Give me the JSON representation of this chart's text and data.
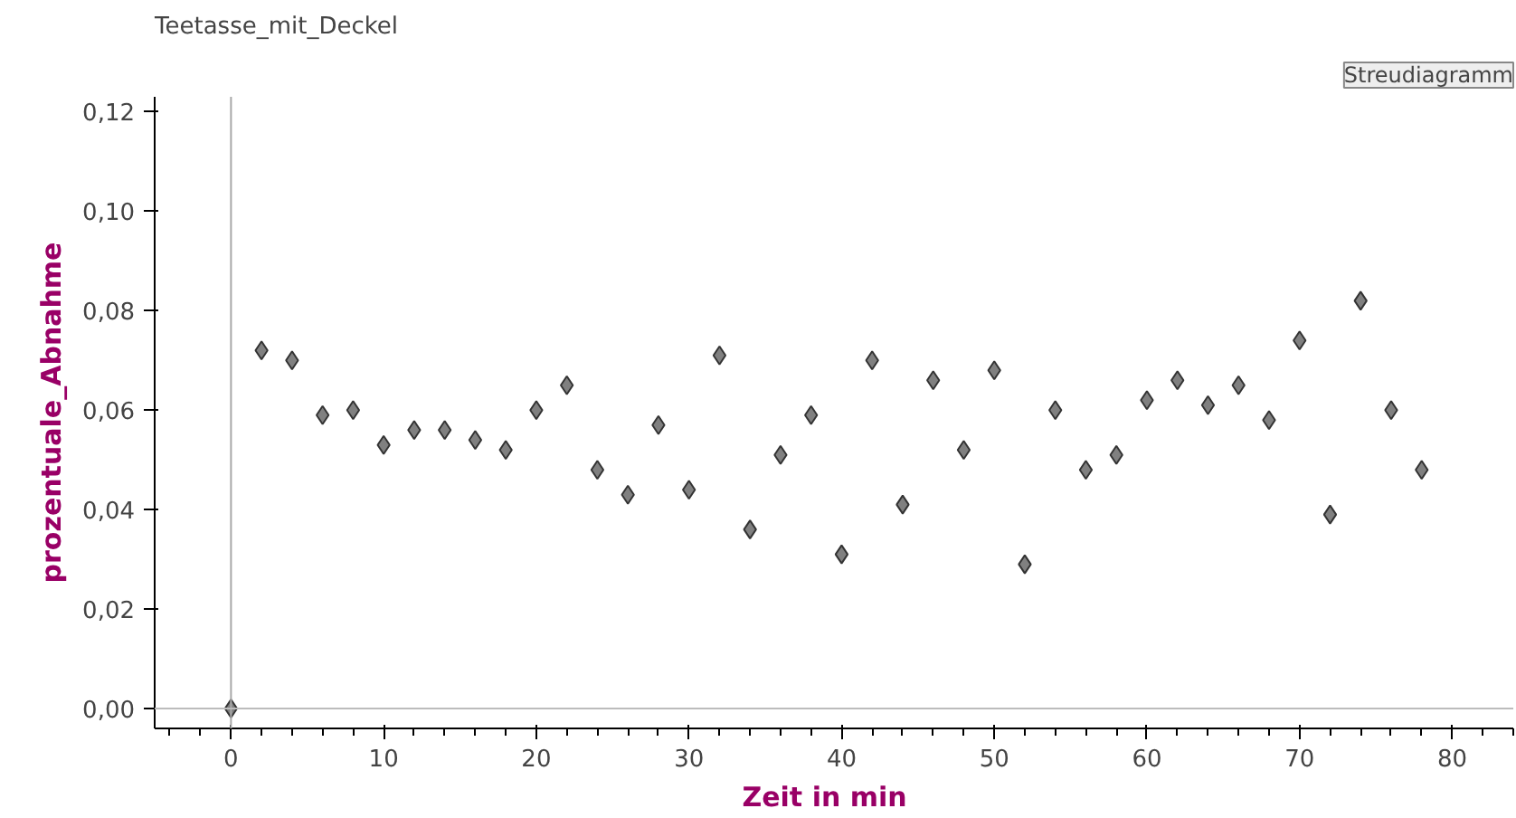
{
  "chart_data": {
    "type": "scatter",
    "title": "Teetasse_mit_Deckel",
    "xlabel": "Zeit  in  min",
    "ylabel": "prozentuale_Abnahme",
    "annotations": [
      "Streudiagramm"
    ],
    "x": [
      0,
      2,
      4,
      6,
      8,
      10,
      12,
      14,
      16,
      18,
      20,
      22,
      24,
      26,
      28,
      30,
      32,
      34,
      36,
      38,
      40,
      42,
      44,
      46,
      48,
      50,
      52,
      54,
      56,
      58,
      60,
      62,
      64,
      66,
      68,
      70,
      72,
      74,
      76,
      78
    ],
    "series": [
      {
        "color": "#808080",
        "values": [
          0,
          0.072,
          0.07,
          0.059,
          0.06,
          0.053,
          0.056,
          0.056,
          0.054,
          0.052,
          0.06,
          0.065,
          0.048,
          0.043,
          0.057,
          0.044,
          0.071,
          0.036,
          0.051,
          0.059,
          0.031,
          0.07,
          0.041,
          0.066,
          0.052,
          0.068,
          0.029,
          0.06,
          0.048,
          0.051,
          0.062,
          0.066,
          0.061,
          0.065,
          0.058,
          0.074,
          0.039,
          0.082,
          0.06,
          0.048
        ]
      }
    ],
    "xlim": [
      -5,
      84
    ],
    "ylim": [
      -0.004,
      0.123
    ],
    "xticks": [
      0,
      10,
      20,
      30,
      40,
      50,
      60,
      70,
      80
    ],
    "yticks": [
      {
        "value": 0,
        "label": "0,00"
      },
      {
        "value": 0.02,
        "label": "0,02"
      },
      {
        "value": 0.04,
        "label": "0,04"
      },
      {
        "value": 0.06,
        "label": "0,06"
      },
      {
        "value": 0.08,
        "label": "0,08"
      },
      {
        "value": 0.1,
        "label": "0,10"
      },
      {
        "value": 0.12,
        "label": "0,12"
      }
    ],
    "ref_lines": [
      {
        "axis": "x",
        "value": 0,
        "color": "#a8a8a8"
      },
      {
        "axis": "y",
        "value": 0,
        "color": "#bcbcbc"
      }
    ],
    "grid": false,
    "marker": "diamond"
  }
}
